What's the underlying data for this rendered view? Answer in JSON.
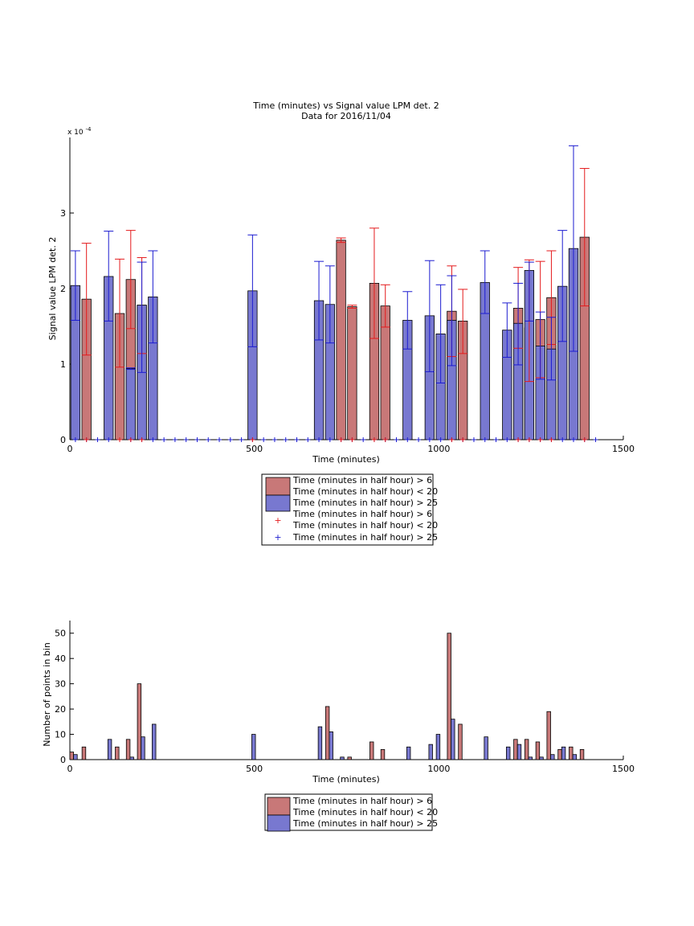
{
  "colors": {
    "red_bar": "#c87878",
    "blue_bar": "#7878d0",
    "red_line": "#e41a1c",
    "blue_line": "#1c1cd0"
  },
  "legend_entries": {
    "red": "Time (minutes in half hour) > 6\nTime (minutes in half hour) < 20",
    "blue": "Time (minutes in half hour) > 25"
  },
  "chart_data": [
    {
      "type": "bar",
      "title": "Time (minutes) vs Signal value LPM det. 2",
      "subtitle": "Data for 2016/11/04",
      "xlabel": "Time (minutes)",
      "ylabel": "Signal value LPM det. 2",
      "y_exponent": "x 10",
      "y_exponent_power": "-4",
      "xlim": [
        0,
        1500
      ],
      "ylim": [
        0,
        4.0
      ],
      "xticks": [
        0,
        500,
        1000,
        1500
      ],
      "yticks": [
        0,
        1,
        2,
        3
      ],
      "ytick_labels": [
        "0",
        "1",
        "2",
        "3"
      ],
      "bar_width": 25,
      "legend": {
        "position": "below",
        "entries": [
          "Time (minutes in half hour) > 6",
          "Time (minutes in half hour) < 20",
          "Time (minutes in half hour) > 25",
          "Time (minutes in half hour) > 6",
          "Time (minutes in half hour) < 20",
          "Time (minutes in half hour) > 25"
        ]
      },
      "series": [
        {
          "color": "red",
          "x": [
            45,
            135,
            165,
            195,
            735,
            765,
            825,
            855,
            1035,
            1065,
            1215,
            1245,
            1275,
            1305,
            1395
          ],
          "values": [
            1.86,
            1.67,
            2.12,
            1.78,
            2.64,
            1.76,
            2.07,
            1.77,
            1.7,
            1.57,
            1.74,
            1.48,
            1.59,
            1.88,
            2.68
          ],
          "err_low": [
            1.12,
            0.96,
            1.47,
            1.14,
            2.61,
            1.74,
            1.34,
            1.49,
            1.1,
            1.14,
            1.21,
            0.77,
            0.82,
            1.26,
            1.77
          ],
          "err_high": [
            2.6,
            2.39,
            2.77,
            2.41,
            2.67,
            1.78,
            2.8,
            2.05,
            2.3,
            1.99,
            2.28,
            2.38,
            2.36,
            2.5,
            3.59
          ]
        },
        {
          "color": "blue",
          "x": [
            15,
            105,
            165,
            195,
            225,
            495,
            675,
            705,
            915,
            975,
            1005,
            1035,
            1125,
            1185,
            1215,
            1245,
            1275,
            1305,
            1335,
            1365
          ],
          "values": [
            2.04,
            2.16,
            0.94,
            1.78,
            1.89,
            1.97,
            1.84,
            1.79,
            1.58,
            1.64,
            1.4,
            1.58,
            2.08,
            1.45,
            1.54,
            2.24,
            1.24,
            1.2,
            2.03,
            2.53
          ],
          "err_low": [
            1.58,
            1.57,
            0.93,
            0.89,
            1.28,
            1.23,
            1.32,
            1.28,
            1.2,
            0.9,
            0.75,
            0.98,
            1.67,
            1.09,
            0.99,
            1.57,
            0.8,
            0.79,
            1.3,
            1.17
          ],
          "err_high": [
            2.5,
            2.76,
            0.95,
            2.35,
            2.5,
            2.71,
            2.36,
            2.3,
            1.96,
            2.37,
            2.05,
            2.17,
            2.5,
            1.81,
            2.07,
            2.35,
            1.69,
            1.62,
            2.77,
            3.89
          ]
        }
      ],
      "markers": {
        "red": {
          "symbol": "+",
          "x": [
            45,
            135,
            165,
            195,
            495,
            735,
            765,
            825,
            855,
            1035,
            1065,
            1215,
            1245,
            1275,
            1305,
            1395
          ]
        },
        "blue": {
          "symbol": "+",
          "x": [
            15,
            45,
            75,
            105,
            135,
            165,
            195,
            225,
            255,
            285,
            315,
            345,
            375,
            405,
            435,
            465,
            495,
            525,
            555,
            585,
            615,
            645,
            675,
            705,
            735,
            765,
            795,
            825,
            855,
            885,
            915,
            945,
            975,
            1005,
            1035,
            1065,
            1095,
            1125,
            1155,
            1185,
            1215,
            1245,
            1275,
            1305,
            1335,
            1365,
            1395,
            1425
          ]
        }
      }
    },
    {
      "type": "bar",
      "title": "",
      "xlabel": "Time (minutes)",
      "ylabel": "Number of points in bin",
      "xlim": [
        0,
        1500
      ],
      "ylim": [
        0,
        55
      ],
      "xticks": [
        0,
        500,
        1000,
        1500
      ],
      "yticks": [
        0,
        10,
        20,
        30,
        40,
        50
      ],
      "bar_width": 10,
      "legend": {
        "position": "below",
        "entries": [
          "Time (minutes in half hour) > 6",
          "Time (minutes in half hour) < 20",
          "Time (minutes in half hour) > 25"
        ]
      },
      "series": [
        {
          "color": "red",
          "x": [
            5,
            38,
            128,
            158,
            188,
            698,
            758,
            818,
            848,
            1028,
            1058,
            1208,
            1238,
            1268,
            1298,
            1328,
            1358,
            1388
          ],
          "values": [
            3,
            5,
            5,
            8,
            30,
            21,
            1,
            7,
            4,
            50,
            14,
            8,
            8,
            7,
            19,
            4,
            5,
            4
          ]
        },
        {
          "color": "blue",
          "x": [
            15,
            108,
            168,
            198,
            228,
            498,
            678,
            708,
            738,
            918,
            978,
            998,
            1038,
            1128,
            1188,
            1218,
            1248,
            1278,
            1308,
            1338,
            1368
          ],
          "values": [
            2,
            8,
            1,
            9,
            14,
            10,
            13,
            11,
            1,
            5,
            6,
            10,
            16,
            9,
            5,
            6,
            1,
            1,
            2,
            5,
            2
          ]
        }
      ]
    }
  ]
}
